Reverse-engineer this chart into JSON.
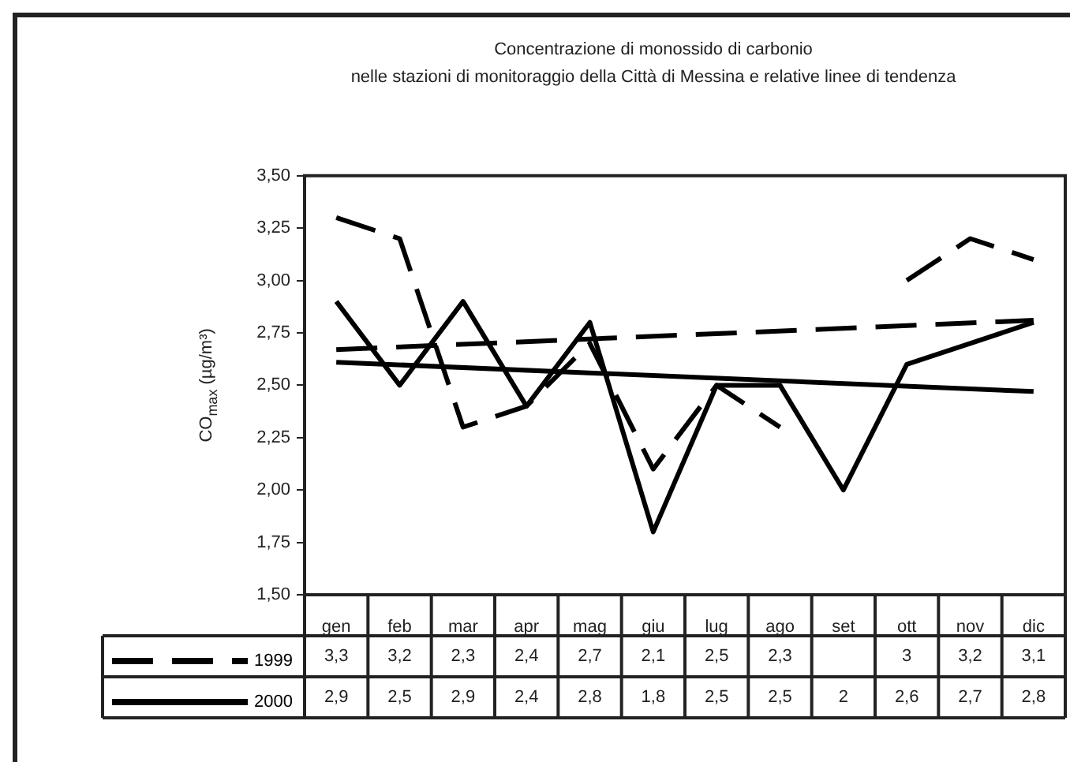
{
  "chart_data": {
    "type": "line",
    "title": "Concentrazione di monossido di carbonio",
    "subtitle": "nelle stazioni di monitoraggio della Città di Messina e relative linee di tendenza",
    "ylabel": "CO$_{max}$ (µg/m³)",
    "categories": [
      "gen",
      "feb",
      "mar",
      "apr",
      "mag",
      "giu",
      "lug",
      "ago",
      "set",
      "ott",
      "nov",
      "dic"
    ],
    "series": [
      {
        "name": "1999",
        "color": "#000000",
        "line_style": "dashed",
        "values": [
          3.3,
          3.2,
          2.3,
          2.4,
          2.7,
          2.1,
          2.5,
          2.3,
          null,
          3,
          3.2,
          3.1
        ],
        "value_labels": [
          "3,3",
          "3,2",
          "2,3",
          "2,4",
          "2,7",
          "2,1",
          "2,5",
          "2,3",
          null,
          "3",
          "3,2",
          "3,1"
        ]
      },
      {
        "name": "2000",
        "color": "#000000",
        "line_style": "solid",
        "values": [
          2.9,
          2.5,
          2.9,
          2.4,
          2.8,
          1.8,
          2.5,
          2.5,
          2,
          2.6,
          2.7,
          2.8
        ],
        "value_labels": [
          "2,9",
          "2,5",
          "2,9",
          "2,4",
          "2,8",
          "1,8",
          "2,5",
          "2,5",
          "2",
          "2,6",
          "2,7",
          "2,8"
        ]
      },
      {
        "type": "line",
        "color": "#000000",
        "line_style": "dashed",
        "x": [
          "gen",
          "dic"
        ],
        "values": [
          2.67,
          2.81
        ]
      },
      {
        "type": "line",
        "color": "#000000",
        "line_style": "solid",
        "x": [
          "gen",
          "dic"
        ],
        "values": [
          2.61,
          2.47
        ]
      }
    ],
    "ylim": [
      1.5,
      3.5
    ],
    "yticks": [
      {
        "value": 1.5,
        "label": "1,50"
      },
      {
        "value": 1.75,
        "label": "1,75"
      },
      {
        "value": 2,
        "label": "2,00"
      },
      {
        "value": 2.25,
        "label": "2,25"
      },
      {
        "value": 2.5,
        "label": "2,50"
      },
      {
        "value": 2.75,
        "label": "2,75"
      },
      {
        "value": 3,
        "label": "3,00"
      },
      {
        "value": 3.25,
        "label": "3,25"
      },
      {
        "value": 3.5,
        "label": "3,50"
      }
    ],
    "grid": false,
    "legend": "bottom left",
    "marker": "none"
  }
}
